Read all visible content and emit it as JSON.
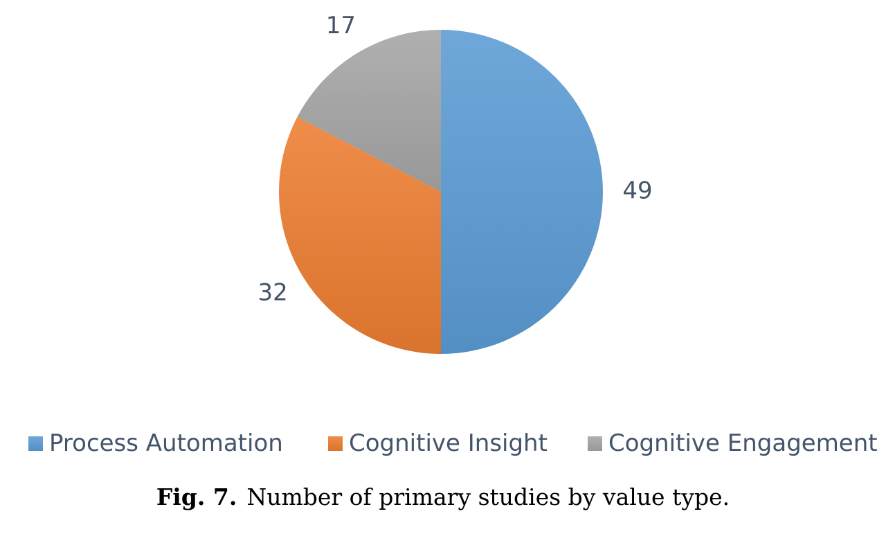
{
  "chart_data": {
    "type": "pie",
    "categories": [
      "Process Automation",
      "Cognitive Insight",
      "Cognitive Engagement"
    ],
    "values": [
      49,
      32,
      17
    ],
    "data_labels": [
      "49",
      "32",
      "17"
    ],
    "colors": [
      "#5b9bd5",
      "#ed7d31",
      "#a5a5a5"
    ],
    "start_angle": "12 o'clock",
    "direction": "clockwise",
    "legend_position": "bottom"
  },
  "caption": {
    "number": "Fig. 7.",
    "text": "Number of primary studies by value type."
  }
}
